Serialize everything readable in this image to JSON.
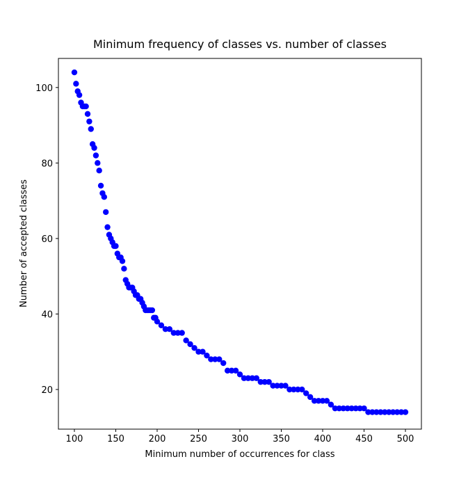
{
  "chart_data": {
    "type": "scatter",
    "title": "Minimum frequency of classes vs. number of classes",
    "xlabel": "Minimum number of occurrences for class",
    "ylabel": "Number of accepted classes",
    "color": "#0000ff",
    "x": [
      100,
      102,
      104,
      106,
      108,
      110,
      112,
      114,
      116,
      118,
      120,
      122,
      124,
      126,
      128,
      130,
      132,
      134,
      136,
      138,
      140,
      142,
      144,
      146,
      148,
      150,
      152,
      154,
      156,
      158,
      160,
      162,
      164,
      166,
      168,
      170,
      172,
      174,
      176,
      178,
      180,
      182,
      184,
      186,
      188,
      190,
      192,
      194,
      196,
      198,
      200,
      205,
      210,
      215,
      220,
      225,
      230,
      235,
      240,
      245,
      250,
      255,
      260,
      265,
      270,
      275,
      280,
      285,
      290,
      295,
      300,
      305,
      310,
      315,
      320,
      325,
      330,
      335,
      340,
      345,
      350,
      355,
      360,
      365,
      370,
      375,
      380,
      385,
      390,
      395,
      400,
      405,
      410,
      415,
      420,
      425,
      430,
      435,
      440,
      445,
      450,
      455,
      460,
      465,
      470,
      475,
      480,
      485,
      490,
      495,
      500
    ],
    "values": [
      104,
      101,
      99,
      98,
      96,
      95,
      95,
      95,
      93,
      91,
      89,
      85,
      84,
      82,
      80,
      78,
      74,
      72,
      71,
      67,
      63,
      61,
      60,
      59,
      58,
      58,
      56,
      55,
      55,
      54,
      52,
      49,
      48,
      47,
      47,
      47,
      46,
      45,
      45,
      44,
      44,
      43,
      42,
      41,
      41,
      41,
      41,
      41,
      39,
      39,
      38,
      37,
      36,
      36,
      35,
      35,
      35,
      33,
      32,
      31,
      30,
      30,
      29,
      28,
      28,
      28,
      27,
      25,
      25,
      25,
      24,
      23,
      23,
      23,
      23,
      22,
      22,
      22,
      21,
      21,
      21,
      21,
      20,
      20,
      20,
      20,
      19,
      18,
      17,
      17,
      17,
      17,
      16,
      15,
      15,
      15,
      15,
      15,
      15,
      15,
      15,
      14,
      14,
      14,
      14,
      14,
      14,
      14,
      14,
      14,
      14
    ],
    "xlim": [
      80.7,
      519.3
    ],
    "ylim": [
      9.5,
      107.7
    ],
    "xticks": [
      100,
      150,
      200,
      250,
      300,
      350,
      400,
      450,
      500
    ],
    "yticks": [
      20,
      40,
      60,
      80,
      100
    ]
  }
}
